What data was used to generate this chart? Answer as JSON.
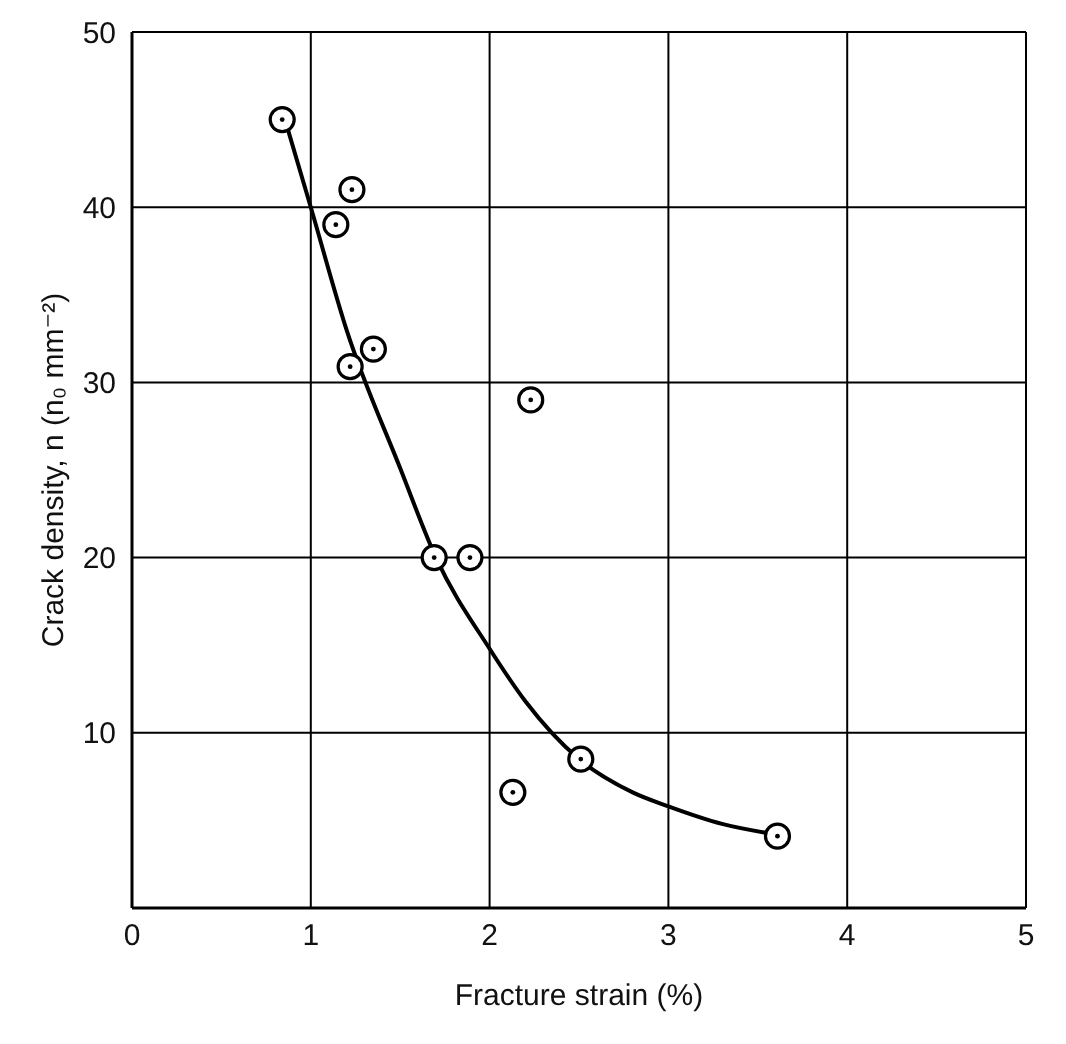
{
  "chart_data": {
    "type": "scatter",
    "xlabel": "Fracture strain (%)",
    "ylabel": "Crack density, n (n₀ mm⁻²)",
    "xlim": [
      0,
      5
    ],
    "xticks": [
      0,
      1,
      2,
      3,
      4,
      5
    ],
    "ylim": [
      0,
      50
    ],
    "yticks": [
      10,
      20,
      30,
      40,
      50
    ],
    "grid": true,
    "series": [
      {
        "marker": "circle",
        "color": "#000000",
        "x": [
          0.84,
          1.23,
          1.14,
          1.35,
          1.22,
          2.23,
          1.69,
          1.89,
          2.51,
          2.13,
          3.61
        ],
        "values": [
          45.0,
          41.0,
          39.0,
          31.9,
          30.9,
          29.0,
          20.0,
          20.0,
          8.5,
          6.6,
          4.1
        ]
      },
      {
        "type": "line",
        "marker": "none",
        "color": "#000000",
        "x": [
          0.87,
          1.0,
          1.2,
          1.5,
          1.7,
          2.0,
          2.2,
          2.5,
          2.8,
          3.0,
          3.3,
          3.6
        ],
        "values": [
          44.5,
          40.0,
          33.0,
          25.1,
          20.0,
          14.8,
          11.8,
          8.5,
          6.6,
          5.8,
          4.8,
          4.2
        ]
      }
    ]
  }
}
